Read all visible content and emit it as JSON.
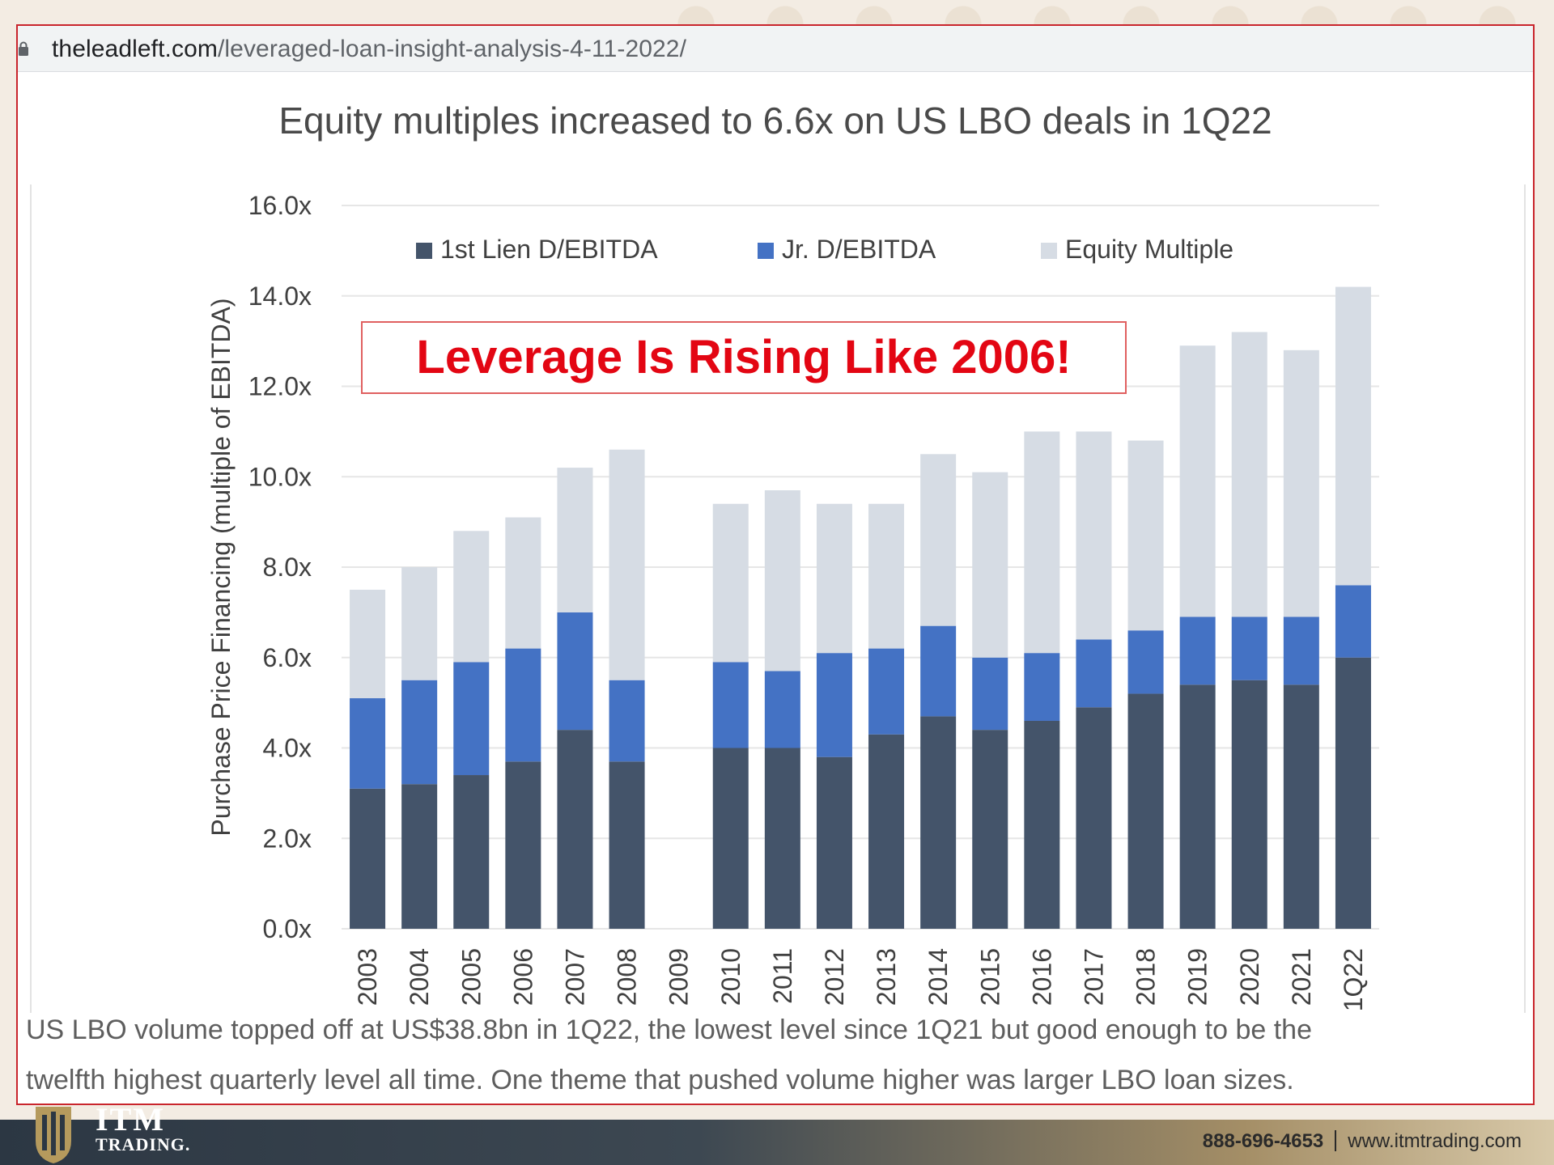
{
  "browser": {
    "url_domain": "theleadleft.com",
    "url_path": "/leveraged-loan-insight-analysis-4-11-2022/"
  },
  "chart_data": {
    "type": "bar",
    "stacked": true,
    "title": "Equity multiples increased to 6.6x on US LBO deals in 1Q22",
    "ylabel": "Purchase Price Financing (multiple of EBITDA)",
    "xlabel": "",
    "ylim": [
      0,
      16
    ],
    "yticks": [
      "0.0x",
      "2.0x",
      "4.0x",
      "6.0x",
      "8.0x",
      "10.0x",
      "12.0x",
      "14.0x",
      "16.0x"
    ],
    "grid": true,
    "legend_position": "top",
    "categories": [
      "2003",
      "2004",
      "2005",
      "2006",
      "2007",
      "2008",
      "2009",
      "2010",
      "2011",
      "2012",
      "2013",
      "2014",
      "2015",
      "2016",
      "2017",
      "2018",
      "2019",
      "2020",
      "2021",
      "1Q22"
    ],
    "series": [
      {
        "name": "1st Lien D/EBITDA",
        "color": "#44546a",
        "values": [
          3.1,
          3.2,
          3.4,
          3.7,
          4.4,
          3.7,
          null,
          4.0,
          4.0,
          3.8,
          4.3,
          4.7,
          4.4,
          4.6,
          4.9,
          5.2,
          5.4,
          5.5,
          5.4,
          6.0
        ]
      },
      {
        "name": "Jr. D/EBITDA",
        "color": "#4472c4",
        "values": [
          2.0,
          2.3,
          2.5,
          2.5,
          2.6,
          1.8,
          null,
          1.9,
          1.7,
          2.3,
          1.9,
          2.0,
          1.6,
          1.5,
          1.5,
          1.4,
          1.5,
          1.4,
          1.5,
          1.6
        ]
      },
      {
        "name": "Equity Multiple",
        "color": "#d6dce4",
        "values": [
          2.4,
          2.5,
          2.9,
          2.9,
          3.2,
          5.1,
          null,
          3.5,
          4.0,
          3.3,
          3.2,
          3.8,
          4.1,
          4.9,
          4.6,
          4.2,
          6.0,
          6.3,
          5.9,
          6.6
        ]
      }
    ],
    "annotation": {
      "text": "Leverage Is Rising Like 2006!",
      "color": "#e30613"
    }
  },
  "caption": {
    "line1": "US LBO volume topped off at US$38.8bn in 1Q22, the lowest level since 1Q21 but good enough to be the",
    "line2": "twelfth highest quarterly level all time. One theme that pushed volume higher was larger LBO loan sizes."
  },
  "footer": {
    "logo_big": "ITM",
    "logo_small": "TRADING.",
    "phone": "888-696-4653",
    "website": "www.itmtrading.com"
  },
  "colors": {
    "frame_border": "#c9252c",
    "annotation_red": "#e30613",
    "footer_gold": "#a48e66"
  }
}
